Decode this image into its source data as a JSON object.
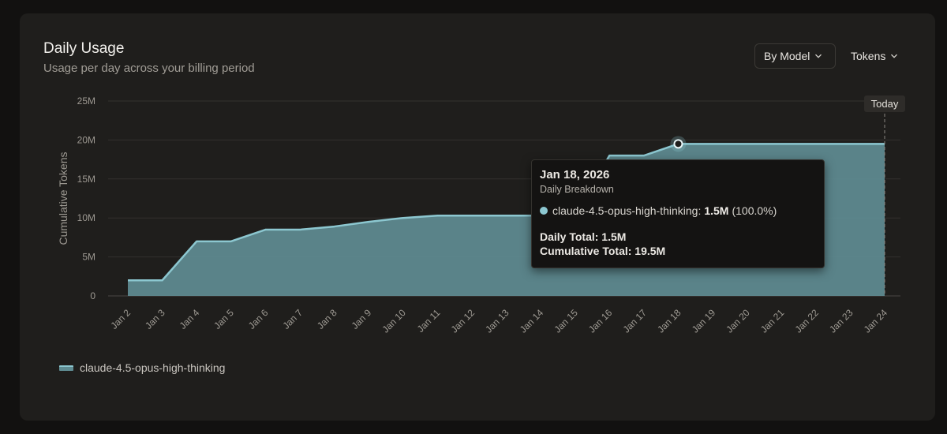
{
  "header": {
    "title": "Daily Usage",
    "subtitle": "Usage per day across your billing period"
  },
  "controls": {
    "group_by": "By Model",
    "metric": "Tokens"
  },
  "today_label": "Today",
  "colors": {
    "series_line": "#8cc7d0",
    "series_fill": "#5f8c92",
    "background": "#1f1e1c",
    "grid": "#33312e"
  },
  "chart_data": {
    "type": "area",
    "title": "",
    "xlabel": "",
    "ylabel": "Cumulative Tokens",
    "ylim": [
      0,
      25000000
    ],
    "yticks": [
      {
        "value": 0,
        "label": "0"
      },
      {
        "value": 5000000,
        "label": "5M"
      },
      {
        "value": 10000000,
        "label": "10M"
      },
      {
        "value": 15000000,
        "label": "15M"
      },
      {
        "value": 20000000,
        "label": "20M"
      },
      {
        "value": 25000000,
        "label": "25M"
      }
    ],
    "categories": [
      "Jan 2",
      "Jan 3",
      "Jan 4",
      "Jan 5",
      "Jan 6",
      "Jan 7",
      "Jan 8",
      "Jan 9",
      "Jan 10",
      "Jan 11",
      "Jan 12",
      "Jan 13",
      "Jan 14",
      "Jan 15",
      "Jan 16",
      "Jan 17",
      "Jan 18",
      "Jan 19",
      "Jan 20",
      "Jan 21",
      "Jan 22",
      "Jan 23",
      "Jan 24"
    ],
    "series": [
      {
        "name": "claude-4.5-opus-high-thinking",
        "values": [
          2000000,
          2000000,
          7000000,
          7000000,
          8500000,
          8500000,
          8900000,
          9500000,
          10000000,
          10300000,
          10300000,
          10300000,
          10300000,
          10300000,
          18000000,
          18000000,
          19500000,
          19500000,
          19500000,
          19500000,
          19500000,
          19500000,
          19500000
        ]
      }
    ],
    "grid": true,
    "legend": "bottom-left",
    "highlight": {
      "category": "Jan 18",
      "value": 19500000
    },
    "today_marker": "Jan 24"
  },
  "tooltip": {
    "date": "Jan 18, 2026",
    "subtitle": "Daily Breakdown",
    "model": "claude-4.5-opus-high-thinking:",
    "amount": "1.5M",
    "percent": "(100.0%)",
    "daily_total": "Daily Total: 1.5M",
    "cumulative_total": "Cumulative Total: 19.5M"
  }
}
